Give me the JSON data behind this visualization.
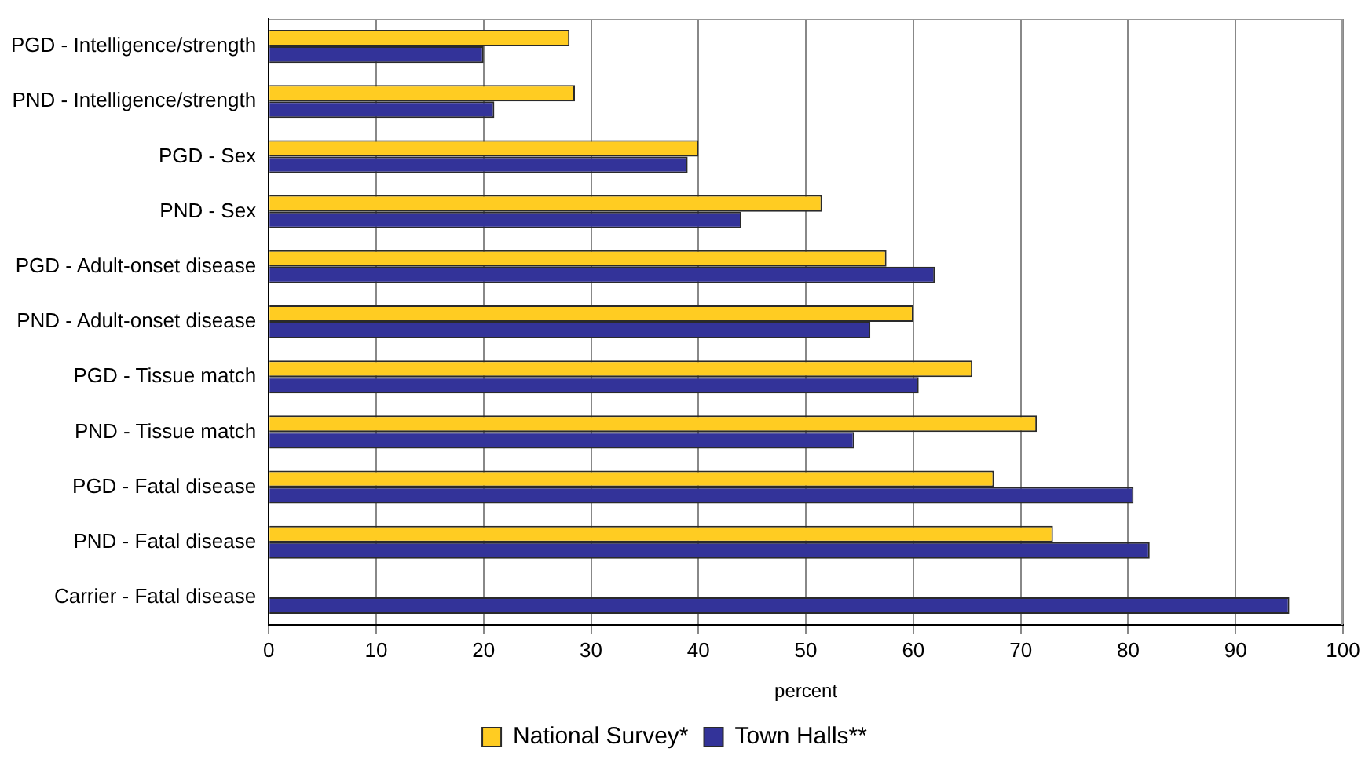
{
  "chart_data": {
    "type": "bar",
    "orientation": "horizontal",
    "xlabel": "percent",
    "categories": [
      "PGD - Intelligence/strength",
      "PND - Intelligence/strength",
      "PGD - Sex",
      "PND - Sex",
      "PGD - Adult-onset disease",
      "PND - Adult-onset disease",
      "PGD - Tissue match",
      "PND - Tissue match",
      "PGD - Fatal disease",
      "PND - Fatal disease",
      "Carrier - Fatal disease"
    ],
    "series": [
      {
        "name": "National Survey*",
        "color": "#ffcc22",
        "values": [
          28,
          28.5,
          40,
          51.5,
          57.5,
          60,
          65.5,
          71.5,
          67.5,
          73,
          null
        ]
      },
      {
        "name": "Town Halls**",
        "color": "#333399",
        "values": [
          20,
          21,
          39,
          44,
          62,
          56,
          60.5,
          54.5,
          80.5,
          82,
          95
        ]
      }
    ],
    "xlim": [
      0,
      100
    ],
    "xticks": [
      0,
      10,
      20,
      30,
      40,
      50,
      60,
      70,
      80,
      90,
      100
    ],
    "grid": "x",
    "legend": "bottom"
  }
}
